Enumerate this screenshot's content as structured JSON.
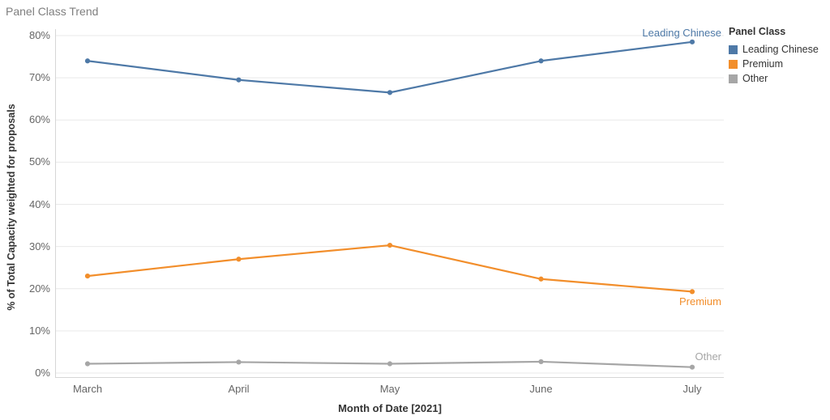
{
  "chart_data": {
    "type": "line",
    "title": "Panel Class Trend",
    "x": [
      "March",
      "April",
      "May",
      "June",
      "July"
    ],
    "xlabel": "Month of Date [2021]",
    "ylabel": "% of Total Capacity weighted for proposals",
    "ylim": [
      0,
      80
    ],
    "ytick_step": 10,
    "ytick_labels": [
      "0%",
      "10%",
      "20%",
      "30%",
      "40%",
      "50%",
      "60%",
      "70%",
      "80%"
    ],
    "grid": "horizontal",
    "legend_position": "right",
    "series": [
      {
        "name": "Leading Chinese",
        "color": "#4e79a7",
        "values": [
          74,
          69.5,
          66.5,
          74,
          78.5
        ]
      },
      {
        "name": "Premium",
        "color": "#f28e2b",
        "values": [
          23,
          27,
          30.3,
          22.3,
          19.3
        ]
      },
      {
        "name": "Other",
        "color": "#a6a6a6",
        "values": [
          2.2,
          2.6,
          2.2,
          2.7,
          1.4
        ]
      }
    ]
  },
  "legend": {
    "title": "Panel Class",
    "items": [
      {
        "label": "Leading Chinese",
        "color": "#4e79a7"
      },
      {
        "label": "Premium",
        "color": "#f28e2b"
      },
      {
        "label": "Other",
        "color": "#a6a6a6"
      }
    ]
  },
  "colors": {
    "title_text": "#7f7f7f",
    "axis_text": "#666666",
    "axis_title_text": "#333333",
    "gridline": "#e9e9e9",
    "axis_line": "#d6d6d6"
  }
}
